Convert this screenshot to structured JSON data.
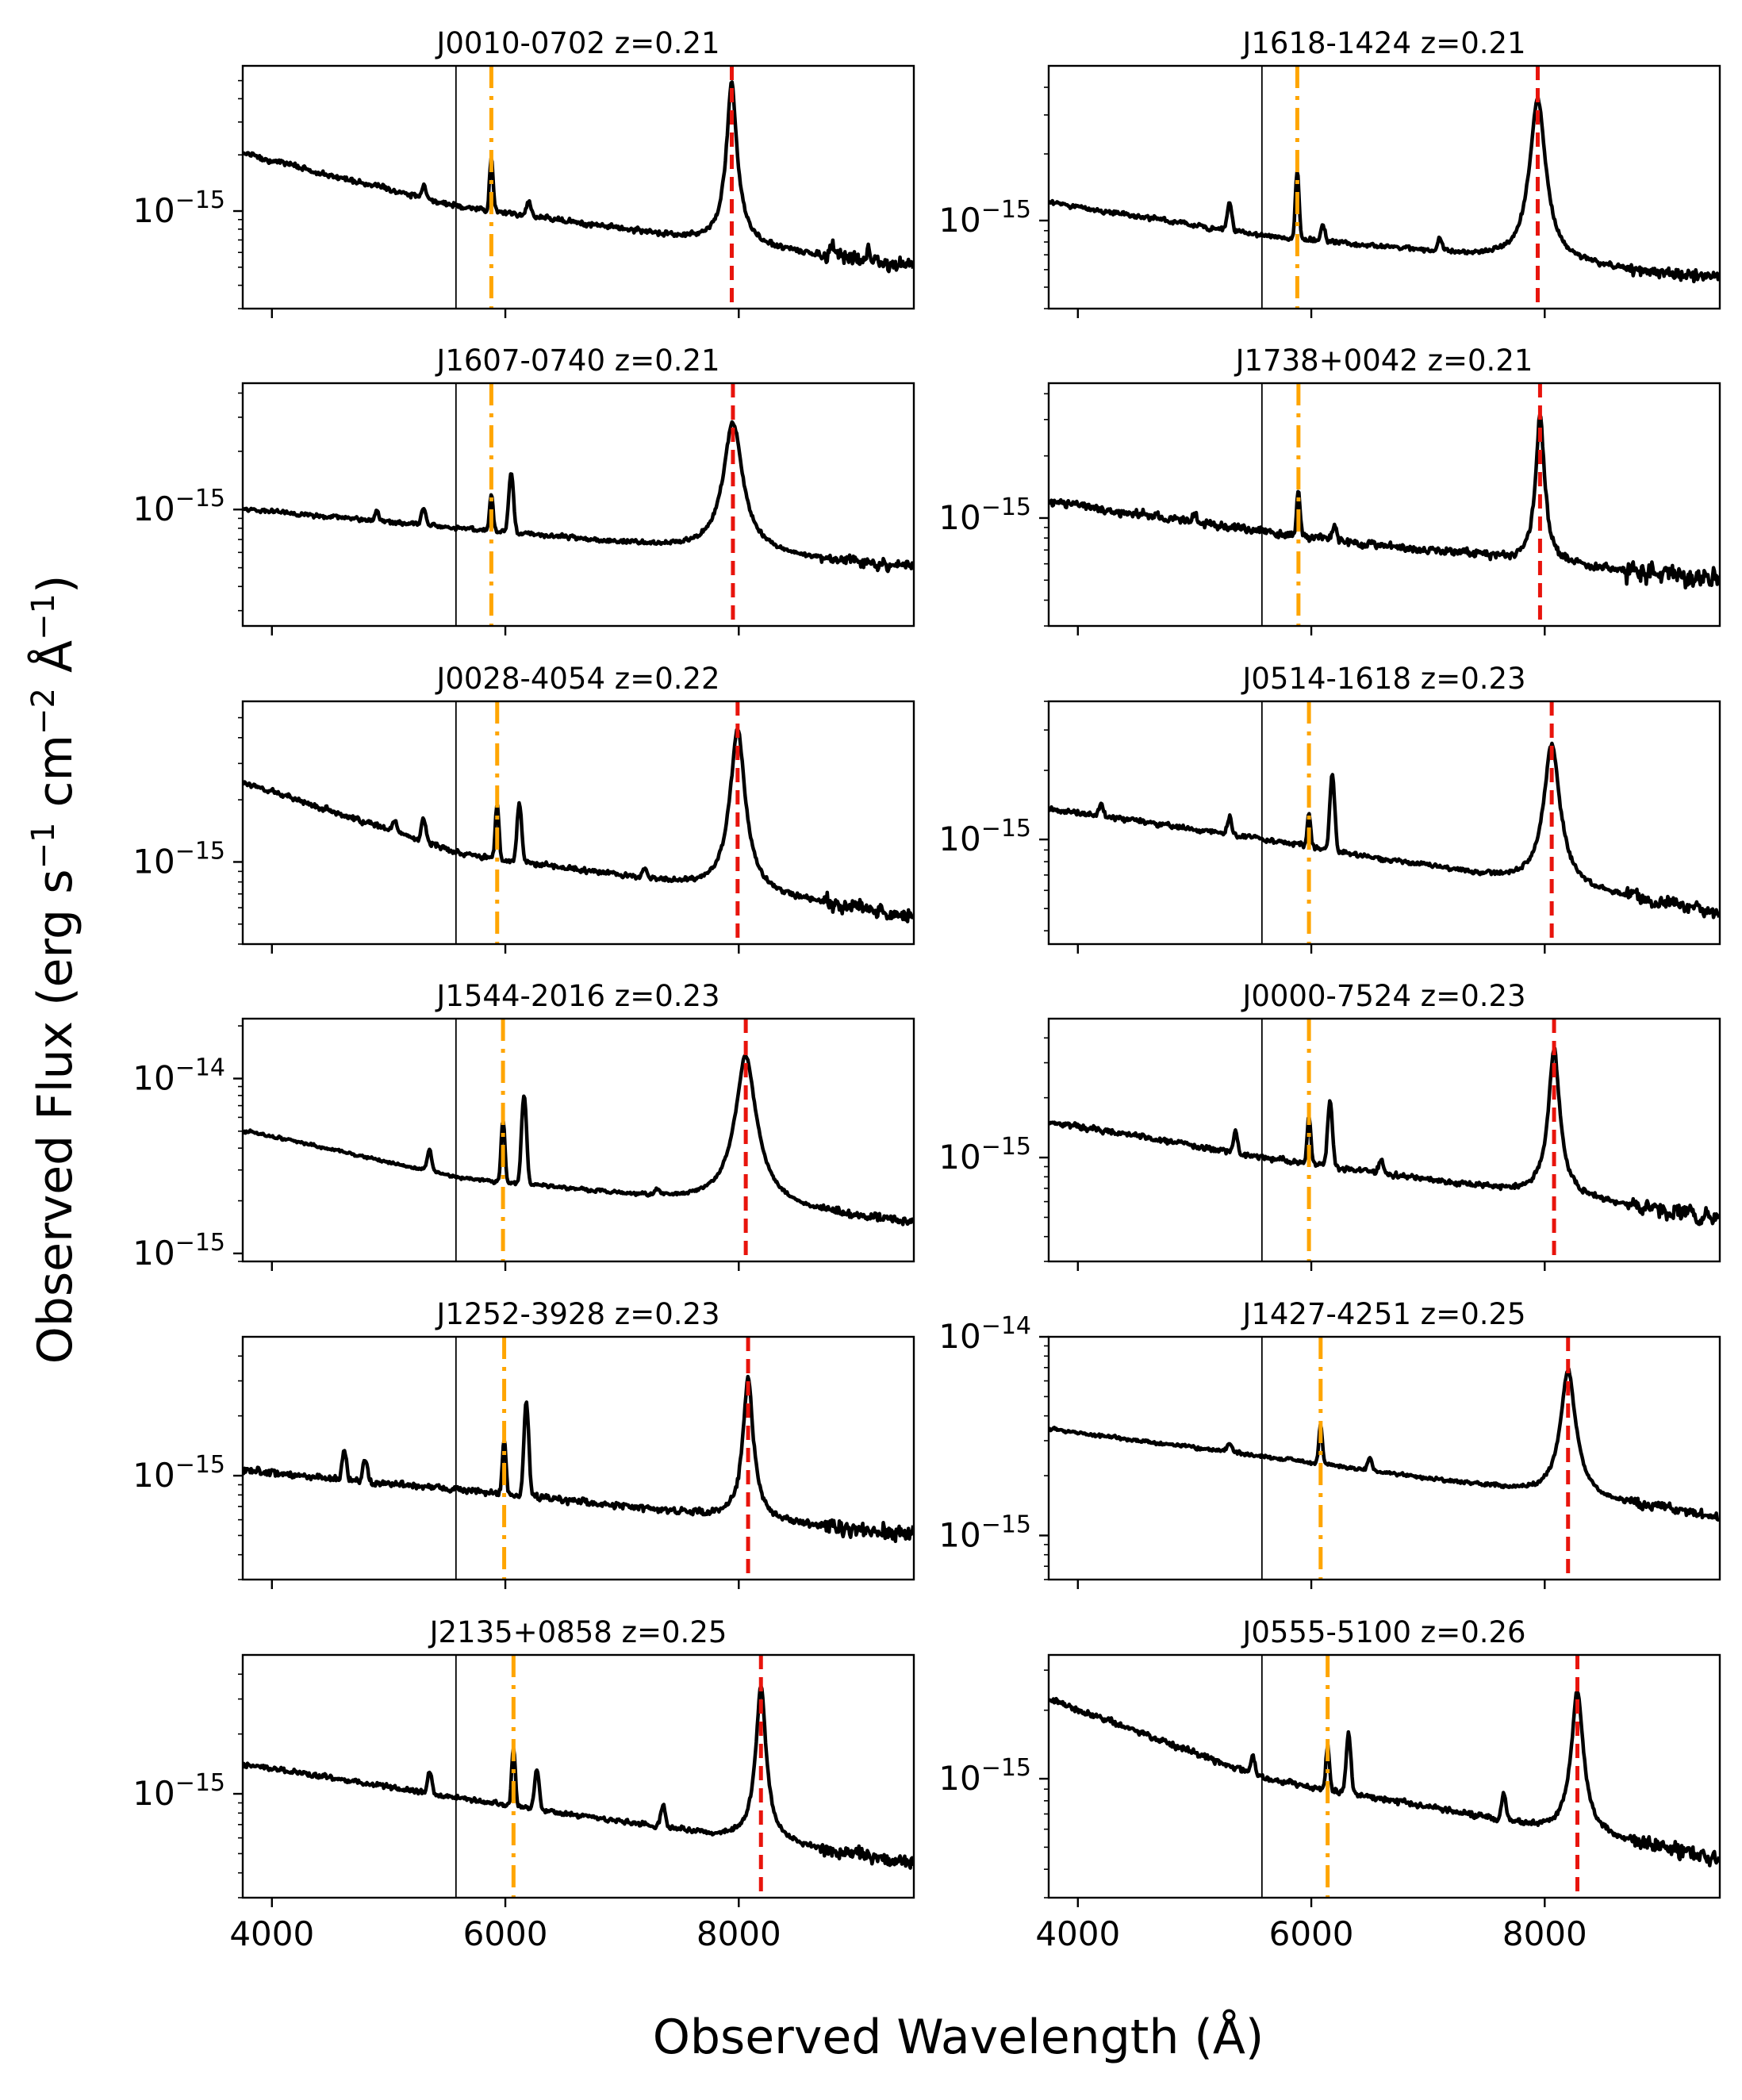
{
  "figure": {
    "xlabel": "Observed Wavelength (Å)",
    "ylabel": "Observed Flux (erg s",
    "ylabel_sup1": "−1",
    "ylabel_mid": " cm",
    "ylabel_sup2": "−2",
    "ylabel_mid2": " Å",
    "ylabel_sup3": "−1",
    "ylabel_end": ")"
  },
  "colors": {
    "spectrum": "#000000",
    "line_a": "#ffa500",
    "line_b": "#e8140c",
    "sky_line": "#000000"
  },
  "chart_data": [
    {
      "type": "line",
      "title": "J0010-0702 z=0.21",
      "z": 0.21,
      "xlim": [
        3750,
        9500
      ],
      "ylim": [
        3e-16,
        6e-15
      ],
      "yscale": "log",
      "yticks": [
        {
          "label": "10",
          "exp": "−15",
          "value": 1e-15
        }
      ],
      "sky_line": 5577,
      "line_a": 5880,
      "line_b": 7940,
      "continuum": [
        [
          3800,
          2e-15
        ],
        [
          5600,
          1.05e-15
        ],
        [
          9450,
          5e-16
        ]
      ],
      "peak_a": 1.9e-15,
      "peak_b": 4.8e-15,
      "width_b": 35,
      "noise": 0.08,
      "features": [
        [
          5300,
          2e-16
        ],
        [
          6200,
          2e-16
        ],
        [
          8800,
          1e-16
        ],
        [
          9100,
          8e-17
        ]
      ]
    },
    {
      "type": "line",
      "title": "J1618-1424 z=0.21",
      "z": 0.21,
      "xlim": [
        3750,
        9500
      ],
      "ylim": [
        4e-16,
        5e-15
      ],
      "yscale": "log",
      "yticks": [
        {
          "label": "10",
          "exp": "−15",
          "value": 1e-15
        }
      ],
      "sky_line": 5577,
      "line_a": 5880,
      "line_b": 7940,
      "continuum": [
        [
          3800,
          1.2e-15
        ],
        [
          5600,
          8.5e-16
        ],
        [
          9450,
          5.5e-16
        ]
      ],
      "peak_a": 1.7e-15,
      "peak_b": 3.6e-15,
      "width_b": 55,
      "noise": 0.06,
      "features": [
        [
          5300,
          3e-16
        ],
        [
          6100,
          1.5e-16
        ],
        [
          7100,
          1e-16
        ]
      ]
    },
    {
      "type": "line",
      "title": "J1607-0740 z=0.21",
      "z": 0.21,
      "xlim": [
        3750,
        9500
      ],
      "ylim": [
        2.5e-16,
        4.5e-15
      ],
      "yscale": "log",
      "yticks": [
        {
          "label": "10",
          "exp": "−15",
          "value": 1e-15
        }
      ],
      "sky_line": 5577,
      "line_a": 5880,
      "line_b": 7950,
      "continuum": [
        [
          3800,
          1e-15
        ],
        [
          5600,
          8e-16
        ],
        [
          9450,
          5e-16
        ]
      ],
      "peak_a": 1.2e-15,
      "peak_b": 2.8e-15,
      "width_b": 70,
      "noise": 0.06,
      "features": [
        [
          5300,
          2e-16
        ],
        [
          6050,
          8e-16
        ],
        [
          4900,
          1e-16
        ]
      ]
    },
    {
      "type": "line",
      "title": "J1738+0042 z=0.21",
      "z": 0.21,
      "xlim": [
        3750,
        9500
      ],
      "ylim": [
        3e-16,
        4.5e-15
      ],
      "yscale": "log",
      "yticks": [
        {
          "label": "10",
          "exp": "−15",
          "value": 1e-15
        }
      ],
      "sky_line": 5577,
      "line_a": 5890,
      "line_b": 7960,
      "continuum": [
        [
          3800,
          1.2e-15
        ],
        [
          5600,
          8.5e-16
        ],
        [
          9450,
          5e-16
        ]
      ],
      "peak_a": 1.3e-15,
      "peak_b": 3.2e-15,
      "width_b": 30,
      "noise": 0.11,
      "features": [
        [
          5000,
          1e-16
        ],
        [
          6200,
          1.5e-16
        ]
      ]
    },
    {
      "type": "line",
      "title": "J0028-4054 z=0.22",
      "z": 0.22,
      "xlim": [
        3750,
        9500
      ],
      "ylim": [
        4e-16,
        6e-15
      ],
      "yscale": "log",
      "yticks": [
        {
          "label": "10",
          "exp": "−15",
          "value": 1e-15
        }
      ],
      "sky_line": 5577,
      "line_a": 5930,
      "line_b": 7990,
      "continuum": [
        [
          3800,
          2.4e-15
        ],
        [
          5600,
          1.1e-15
        ],
        [
          9450,
          5.5e-16
        ]
      ],
      "peak_a": 1.9e-15,
      "peak_b": 4.5e-15,
      "width_b": 50,
      "noise": 0.07,
      "features": [
        [
          5300,
          4e-16
        ],
        [
          5050,
          2e-16
        ],
        [
          6120,
          9e-16
        ],
        [
          7200,
          1e-16
        ]
      ]
    },
    {
      "type": "line",
      "title": "J0514-1618 z=0.23",
      "z": 0.23,
      "xlim": [
        3750,
        9500
      ],
      "ylim": [
        3.5e-16,
        4e-15
      ],
      "yscale": "log",
      "yticks": [
        {
          "label": "10",
          "exp": "−15",
          "value": 1e-15
        }
      ],
      "sky_line": 5577,
      "line_a": 5980,
      "line_b": 8060,
      "continuum": [
        [
          3800,
          1.35e-15
        ],
        [
          5600,
          1e-15
        ],
        [
          9450,
          4.8e-16
        ]
      ],
      "peak_a": 1.3e-15,
      "peak_b": 2.6e-15,
      "width_b": 60,
      "noise": 0.06,
      "features": [
        [
          4200,
          1.5e-16
        ],
        [
          5300,
          2e-16
        ],
        [
          6180,
          1e-15
        ]
      ]
    },
    {
      "type": "line",
      "title": "J1544-2016 z=0.23",
      "z": 0.23,
      "xlim": [
        3750,
        9500
      ],
      "ylim": [
        9e-16,
        2.2e-14
      ],
      "yscale": "log",
      "yticks": [
        {
          "label": "10",
          "exp": "−14",
          "value": 1e-14
        },
        {
          "label": "10",
          "exp": "−15",
          "value": 1e-15
        }
      ],
      "sky_line": 5577,
      "line_a": 5980,
      "line_b": 8060,
      "continuum": [
        [
          3800,
          5e-15
        ],
        [
          5600,
          2.7e-15
        ],
        [
          9450,
          1.5e-15
        ]
      ],
      "peak_a": 5.8e-15,
      "peak_b": 1.35e-14,
      "width_b": 70,
      "noise": 0.05,
      "features": [
        [
          5350,
          1e-15
        ],
        [
          6160,
          5.5e-15
        ],
        [
          7300,
          2e-16
        ]
      ]
    },
    {
      "type": "line",
      "title": "J0000-7524 z=0.23",
      "z": 0.23,
      "xlim": [
        3750,
        9500
      ],
      "ylim": [
        3e-16,
        5e-15
      ],
      "yscale": "log",
      "yticks": [
        {
          "label": "10",
          "exp": "−15",
          "value": 1e-15
        }
      ],
      "sky_line": 5577,
      "line_a": 5980,
      "line_b": 8080,
      "continuum": [
        [
          3800,
          1.5e-15
        ],
        [
          5600,
          1e-15
        ],
        [
          9450,
          5e-16
        ]
      ],
      "peak_a": 1.6e-15,
      "peak_b": 3.5e-15,
      "width_b": 40,
      "noise": 0.08,
      "features": [
        [
          5350,
          3e-16
        ],
        [
          6160,
          1e-15
        ],
        [
          6600,
          1.5e-16
        ]
      ]
    },
    {
      "type": "line",
      "title": "J1252-3928 z=0.23",
      "z": 0.23,
      "xlim": [
        3750,
        9500
      ],
      "ylim": [
        3e-16,
        5e-15
      ],
      "yscale": "log",
      "yticks": [
        {
          "label": "10",
          "exp": "−15",
          "value": 1e-15
        }
      ],
      "sky_line": 5577,
      "line_a": 5990,
      "line_b": 8080,
      "continuum": [
        [
          3800,
          1.05e-15
        ],
        [
          5600,
          8.5e-16
        ],
        [
          9450,
          5e-16
        ]
      ],
      "peak_a": 1.5e-15,
      "peak_b": 3.2e-15,
      "width_b": 35,
      "noise": 0.09,
      "features": [
        [
          4620,
          4e-16
        ],
        [
          4800,
          3e-16
        ],
        [
          6180,
          1.5e-15
        ]
      ]
    },
    {
      "type": "line",
      "title": "J1427-4251 z=0.25",
      "z": 0.25,
      "xlim": [
        3750,
        9500
      ],
      "ylim": [
        6e-16,
        1e-14
      ],
      "yscale": "log",
      "yticks": [
        {
          "label": "10",
          "exp": "−14",
          "value": 1e-14
        },
        {
          "label": "10",
          "exp": "−15",
          "value": 1e-15
        }
      ],
      "sky_line": 5577,
      "line_a": 6080,
      "line_b": 8200,
      "continuum": [
        [
          3800,
          3.4e-15
        ],
        [
          5600,
          2.5e-15
        ],
        [
          9450,
          1.25e-15
        ]
      ],
      "peak_a": 3.6e-15,
      "peak_b": 6.8e-15,
      "width_b": 55,
      "noise": 0.05,
      "features": [
        [
          5300,
          3e-16
        ],
        [
          6500,
          3e-16
        ]
      ]
    },
    {
      "type": "line",
      "title": "J2135+0858 z=0.25",
      "z": 0.25,
      "xlim": [
        3750,
        9500
      ],
      "ylim": [
        3e-16,
        5e-15
      ],
      "yscale": "log",
      "yticks": [
        {
          "label": "10",
          "exp": "−15",
          "value": 1e-15
        }
      ],
      "sky_line": 5577,
      "line_a": 6070,
      "line_b": 8190,
      "continuum": [
        [
          3800,
          1.4e-15
        ],
        [
          5600,
          9.5e-16
        ],
        [
          9450,
          4.5e-16
        ]
      ],
      "peak_a": 1.7e-15,
      "peak_b": 3.5e-15,
      "width_b": 35,
      "noise": 0.07,
      "features": [
        [
          5350,
          3e-16
        ],
        [
          6270,
          5e-16
        ],
        [
          7350,
          2e-16
        ]
      ]
    },
    {
      "type": "line",
      "title": "J0555-5100 z=0.26",
      "z": 0.26,
      "xlim": [
        3750,
        9500
      ],
      "ylim": [
        3e-16,
        3.5e-15
      ],
      "yscale": "log",
      "yticks": [
        {
          "label": "10",
          "exp": "−15",
          "value": 1e-15
        }
      ],
      "sky_line": 5577,
      "line_a": 6140,
      "line_b": 8280,
      "continuum": [
        [
          3800,
          2.2e-15
        ],
        [
          5600,
          1e-15
        ],
        [
          9450,
          4.5e-16
        ]
      ],
      "peak_a": 1.4e-15,
      "peak_b": 2.4e-15,
      "width_b": 45,
      "noise": 0.07,
      "features": [
        [
          5500,
          2e-16
        ],
        [
          6320,
          7e-16
        ],
        [
          7650,
          2e-16
        ]
      ]
    }
  ],
  "xticks": [
    4000,
    6000,
    8000
  ]
}
